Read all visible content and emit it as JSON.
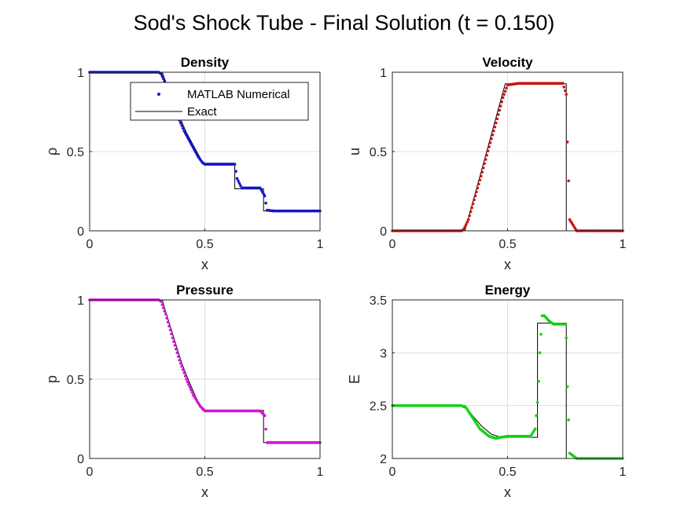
{
  "figure": {
    "title": "Sod's Shock Tube - Final Solution (t = 0.150)"
  },
  "legend": {
    "items": [
      "MATLAB Numerical",
      "Exact"
    ]
  },
  "chart_data": [
    {
      "type": "line",
      "title": "Density",
      "xlabel": "x",
      "ylabel": "ρ",
      "xlim": [
        0,
        1
      ],
      "ylim": [
        0,
        1
      ],
      "xticks": [
        "0",
        "0.5",
        "1"
      ],
      "yticks": [
        "0",
        "0.5",
        "1"
      ],
      "grid": true,
      "legend": "top-right",
      "series": [
        {
          "name": "MATLAB Numerical",
          "style": "markers",
          "color": "#1414c8",
          "x": [
            0,
            0.1,
            0.2,
            0.3,
            0.31,
            0.33,
            0.35,
            0.38,
            0.41,
            0.44,
            0.47,
            0.49,
            0.5,
            0.55,
            0.6,
            0.63,
            0.64,
            0.66,
            0.7,
            0.74,
            0.76,
            0.77,
            0.8,
            0.9,
            1.0
          ],
          "y": [
            1,
            1,
            1,
            1,
            0.99,
            0.93,
            0.84,
            0.73,
            0.63,
            0.55,
            0.47,
            0.43,
            0.42,
            0.42,
            0.42,
            0.42,
            0.33,
            0.27,
            0.27,
            0.27,
            0.22,
            0.13,
            0.125,
            0.125,
            0.125
          ]
        },
        {
          "name": "Exact",
          "style": "line",
          "color": "#000000",
          "x": [
            0,
            0.315,
            0.33,
            0.36,
            0.39,
            0.42,
            0.45,
            0.48,
            0.49,
            0.63,
            0.63,
            0.755,
            0.755,
            1.0
          ],
          "y": [
            1,
            1,
            0.94,
            0.83,
            0.72,
            0.62,
            0.54,
            0.46,
            0.426,
            0.426,
            0.265,
            0.265,
            0.125,
            0.125
          ]
        }
      ]
    },
    {
      "type": "line",
      "title": "Velocity",
      "xlabel": "x",
      "ylabel": "u",
      "xlim": [
        0,
        1
      ],
      "ylim": [
        0,
        1
      ],
      "xticks": [
        "0",
        "0.5",
        "1"
      ],
      "yticks": [
        "0",
        "0.5",
        "1"
      ],
      "grid": true,
      "series": [
        {
          "name": "MATLAB Numerical",
          "style": "markers",
          "color": "#c81414",
          "x": [
            0,
            0.1,
            0.2,
            0.3,
            0.31,
            0.33,
            0.36,
            0.39,
            0.42,
            0.45,
            0.48,
            0.5,
            0.55,
            0.6,
            0.65,
            0.7,
            0.74,
            0.755,
            0.76,
            0.77,
            0.8,
            0.9,
            1.0
          ],
          "y": [
            0,
            0,
            0,
            0,
            0.01,
            0.07,
            0.22,
            0.37,
            0.53,
            0.68,
            0.84,
            0.92,
            0.93,
            0.93,
            0.93,
            0.93,
            0.93,
            0.86,
            0.56,
            0.07,
            0,
            0,
            0
          ]
        },
        {
          "name": "Exact",
          "style": "line",
          "color": "#000000",
          "x": [
            0,
            0.315,
            0.49,
            0.755,
            0.755,
            1.0
          ],
          "y": [
            0,
            0,
            0.927,
            0.927,
            0,
            0
          ]
        }
      ]
    },
    {
      "type": "line",
      "title": "Pressure",
      "xlabel": "x",
      "ylabel": "p",
      "xlim": [
        0,
        1
      ],
      "ylim": [
        0,
        1
      ],
      "xticks": [
        "0",
        "0.5",
        "1"
      ],
      "yticks": [
        "0",
        "0.5",
        "1"
      ],
      "grid": true,
      "series": [
        {
          "name": "MATLAB Numerical",
          "style": "markers",
          "color": "#d214d2",
          "x": [
            0,
            0.1,
            0.2,
            0.3,
            0.31,
            0.33,
            0.36,
            0.39,
            0.42,
            0.45,
            0.48,
            0.5,
            0.55,
            0.6,
            0.65,
            0.7,
            0.74,
            0.76,
            0.77,
            0.8,
            0.9,
            1.0
          ],
          "y": [
            1,
            1,
            1,
            1,
            0.99,
            0.91,
            0.76,
            0.62,
            0.5,
            0.4,
            0.33,
            0.3,
            0.3,
            0.3,
            0.3,
            0.3,
            0.3,
            0.27,
            0.1,
            0.1,
            0.1,
            0.1
          ]
        },
        {
          "name": "Exact",
          "style": "line",
          "color": "#000000",
          "x": [
            0,
            0.315,
            0.34,
            0.37,
            0.4,
            0.43,
            0.46,
            0.49,
            0.755,
            0.755,
            1.0
          ],
          "y": [
            1,
            1,
            0.88,
            0.74,
            0.6,
            0.49,
            0.39,
            0.303,
            0.303,
            0.1,
            0.1
          ]
        }
      ]
    },
    {
      "type": "line",
      "title": "Energy",
      "xlabel": "x",
      "ylabel": "E",
      "xlim": [
        0,
        1
      ],
      "ylim": [
        2,
        3.5
      ],
      "xticks": [
        "0",
        "0.5",
        "1"
      ],
      "yticks": [
        "2",
        "2.5",
        "3",
        "3.5"
      ],
      "grid": true,
      "series": [
        {
          "name": "MATLAB Numerical",
          "style": "markers",
          "color": "#14d214",
          "x": [
            0,
            0.1,
            0.2,
            0.3,
            0.32,
            0.35,
            0.38,
            0.42,
            0.45,
            0.47,
            0.5,
            0.55,
            0.6,
            0.62,
            0.63,
            0.635,
            0.64,
            0.65,
            0.66,
            0.68,
            0.7,
            0.73,
            0.75,
            0.755,
            0.76,
            0.77,
            0.8,
            0.9,
            1.0
          ],
          "y": [
            2.5,
            2.5,
            2.5,
            2.5,
            2.48,
            2.38,
            2.28,
            2.21,
            2.19,
            2.2,
            2.21,
            2.21,
            2.21,
            2.28,
            2.53,
            2.73,
            3.0,
            3.35,
            3.35,
            3.3,
            3.27,
            3.27,
            3.27,
            3.14,
            2.68,
            2.05,
            2.0,
            2.0,
            2.0
          ]
        },
        {
          "name": "Exact",
          "style": "line",
          "color": "#000000",
          "x": [
            0,
            0.315,
            0.35,
            0.39,
            0.43,
            0.47,
            0.49,
            0.63,
            0.63,
            0.755,
            0.755,
            1.0
          ],
          "y": [
            2.5,
            2.5,
            2.4,
            2.3,
            2.23,
            2.2,
            2.2,
            2.2,
            3.28,
            3.28,
            2.0,
            2.0
          ]
        }
      ]
    }
  ]
}
